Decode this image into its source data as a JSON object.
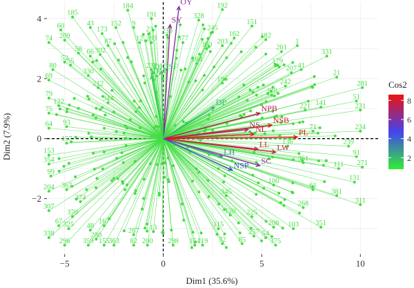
{
  "chart_data": {
    "type": "scatter",
    "subtype": "PCA biplot (individuals + variables)",
    "xlabel": "Dim1 (35.6%)",
    "ylabel": "Dim2 (7.9%)",
    "xlim": [
      -5.9,
      10.9
    ],
    "ylim": [
      -3.85,
      4.55
    ],
    "x_ticks": [
      -5,
      0,
      5,
      10
    ],
    "y_ticks": [
      -2,
      0,
      2,
      4
    ],
    "grid": true,
    "reference_lines": {
      "x": 0,
      "y": 0,
      "style": "dashed"
    },
    "legend": {
      "title": "Cos2",
      "ticks": [
        2,
        4,
        6,
        8
      ],
      "range": [
        0.8,
        8.6
      ],
      "gradient_colors": [
        "#33ee33",
        "#4444ee",
        "#ee1111"
      ],
      "placement": "right"
    },
    "individuals": {
      "color": "#44dd44",
      "labeled_points": [
        {
          "label": "185",
          "x": -4.6,
          "y": 4.05
        },
        {
          "label": "184",
          "x": -1.8,
          "y": 4.28
        },
        {
          "label": "191",
          "x": -0.6,
          "y": 4.0
        },
        {
          "label": "43",
          "x": -3.7,
          "y": 3.7
        },
        {
          "label": "152",
          "x": -2.4,
          "y": 3.7
        },
        {
          "label": "9",
          "x": -1.5,
          "y": 3.7
        },
        {
          "label": "60",
          "x": -5.2,
          "y": 3.62
        },
        {
          "label": "173",
          "x": -3.1,
          "y": 3.5
        },
        {
          "label": "23",
          "x": -0.7,
          "y": 3.5
        },
        {
          "label": "74",
          "x": -5.8,
          "y": 3.2
        },
        {
          "label": "209",
          "x": -5.0,
          "y": 3.28
        },
        {
          "label": "80",
          "x": -5.6,
          "y": 2.3
        },
        {
          "label": "52",
          "x": -5.0,
          "y": 2.55
        },
        {
          "label": "58",
          "x": -4.3,
          "y": 2.85
        },
        {
          "label": "66",
          "x": -3.7,
          "y": 2.75
        },
        {
          "label": "55",
          "x": -4.7,
          "y": 2.45
        },
        {
          "label": "69",
          "x": -5.8,
          "y": 1.95
        },
        {
          "label": "79",
          "x": -5.8,
          "y": 1.35
        },
        {
          "label": "122",
          "x": -5.3,
          "y": 1.1
        },
        {
          "label": "75",
          "x": -5.8,
          "y": 0.85
        },
        {
          "label": "64",
          "x": -5.8,
          "y": 0.35
        },
        {
          "label": "93",
          "x": -4.9,
          "y": 0.4
        },
        {
          "label": "153",
          "x": -5.8,
          "y": -0.55
        },
        {
          "label": "354",
          "x": -5.8,
          "y": -0.85
        },
        {
          "label": "99",
          "x": -5.7,
          "y": -1.25
        },
        {
          "label": "204",
          "x": -5.8,
          "y": -1.75
        },
        {
          "label": "307",
          "x": -5.8,
          "y": -2.4
        },
        {
          "label": "67",
          "x": -5.3,
          "y": -2.9
        },
        {
          "label": "325",
          "x": -4.8,
          "y": -3.0
        },
        {
          "label": "338",
          "x": -5.8,
          "y": -3.3
        },
        {
          "label": "296",
          "x": -5.0,
          "y": -3.55
        },
        {
          "label": "359",
          "x": -3.8,
          "y": -3.55
        },
        {
          "label": "155",
          "x": -3.0,
          "y": -3.55
        },
        {
          "label": "363",
          "x": -2.5,
          "y": -3.55
        },
        {
          "label": "82",
          "x": -1.5,
          "y": -3.55
        },
        {
          "label": "200",
          "x": -0.8,
          "y": -3.55
        },
        {
          "label": "298",
          "x": 0.5,
          "y": -3.55
        },
        {
          "label": "154",
          "x": 1.6,
          "y": -3.55
        },
        {
          "label": "32",
          "x": 3.0,
          "y": -3.5
        },
        {
          "label": "85",
          "x": 4.0,
          "y": -3.5
        },
        {
          "label": "54",
          "x": 5.2,
          "y": -3.3
        },
        {
          "label": "103",
          "x": 6.6,
          "y": -3.0
        },
        {
          "label": "351",
          "x": 8.0,
          "y": -2.95
        },
        {
          "label": "311",
          "x": 10.0,
          "y": -2.2
        },
        {
          "label": "381",
          "x": 8.8,
          "y": -1.9
        },
        {
          "label": "131",
          "x": 9.7,
          "y": -1.45
        },
        {
          "label": "271",
          "x": 10.1,
          "y": -0.95
        },
        {
          "label": "111",
          "x": 8.9,
          "y": -1.0
        },
        {
          "label": "91",
          "x": 9.8,
          "y": -0.6
        },
        {
          "label": "239",
          "x": 9.4,
          "y": -0.25
        },
        {
          "label": "234",
          "x": 10.0,
          "y": 0.25
        },
        {
          "label": "231",
          "x": 10.0,
          "y": 0.95
        },
        {
          "label": "281",
          "x": 10.1,
          "y": 1.7
        },
        {
          "label": "51",
          "x": 9.8,
          "y": 1.25
        },
        {
          "label": "21",
          "x": 8.8,
          "y": 2.05
        },
        {
          "label": "331",
          "x": 8.3,
          "y": 2.75
        },
        {
          "label": "141",
          "x": 8.0,
          "y": 1.05
        },
        {
          "label": "41",
          "x": 7.0,
          "y": 2.3
        },
        {
          "label": "1",
          "x": 6.8,
          "y": 3.1
        },
        {
          "label": "182",
          "x": 5.2,
          "y": 3.3
        },
        {
          "label": "151",
          "x": 4.5,
          "y": 3.75
        },
        {
          "label": "162",
          "x": 3.6,
          "y": 3.35
        },
        {
          "label": "192",
          "x": 3.0,
          "y": 4.3
        },
        {
          "label": "328",
          "x": 1.8,
          "y": 3.95
        },
        {
          "label": "201",
          "x": 6.0,
          "y": 2.9
        },
        {
          "label": "245",
          "x": 2.5,
          "y": 3.55
        },
        {
          "label": "239",
          "x": 0.2,
          "y": 3.45
        },
        {
          "label": "203",
          "x": 3.0,
          "y": 3.1
        },
        {
          "label": "360",
          "x": 2.2,
          "y": 3.0
        },
        {
          "label": "377",
          "x": 1.0,
          "y": 3.2
        },
        {
          "label": "179",
          "x": 5.8,
          "y": 2.45
        },
        {
          "label": "207",
          "x": 6.5,
          "y": 2.2
        },
        {
          "label": "242",
          "x": 6.2,
          "y": 1.75
        },
        {
          "label": "228",
          "x": 5.5,
          "y": 1.45
        },
        {
          "label": "221",
          "x": 7.2,
          "y": 0.95
        },
        {
          "label": "71",
          "x": 7.6,
          "y": 0.25
        },
        {
          "label": "212",
          "x": -3.3,
          "y": 1.7
        },
        {
          "label": "330",
          "x": -3.8,
          "y": 2.1
        },
        {
          "label": "283",
          "x": -0.6,
          "y": 3.2
        },
        {
          "label": "12",
          "x": -1.2,
          "y": 3.2
        },
        {
          "label": "87",
          "x": -2.8,
          "y": 3.1
        },
        {
          "label": "302",
          "x": -3.2,
          "y": 2.8
        },
        {
          "label": "157",
          "x": -4.9,
          "y": -0.15
        },
        {
          "label": "367",
          "x": -4.9,
          "y": -1.7
        },
        {
          "label": "374",
          "x": -4.2,
          "y": -2.1
        },
        {
          "label": "370",
          "x": -4.6,
          "y": -2.6
        },
        {
          "label": "48",
          "x": -3.7,
          "y": -3.05
        },
        {
          "label": "167",
          "x": -3.0,
          "y": -2.9
        },
        {
          "label": "280",
          "x": -3.4,
          "y": -3.35
        },
        {
          "label": "267",
          "x": -1.5,
          "y": -3.2
        },
        {
          "label": "13",
          "x": -0.5,
          "y": -3.1
        },
        {
          "label": "119",
          "x": 2.0,
          "y": -3.55
        },
        {
          "label": "115",
          "x": 2.8,
          "y": -3.0
        },
        {
          "label": "120",
          "x": 3.4,
          "y": -2.55
        },
        {
          "label": "208",
          "x": 5.6,
          "y": -2.95
        },
        {
          "label": "225",
          "x": 4.5,
          "y": -2.6
        },
        {
          "label": "268",
          "x": 7.1,
          "y": -2.3
        },
        {
          "label": "61",
          "x": 7.6,
          "y": -1.7
        },
        {
          "label": "100",
          "x": 5.6,
          "y": -1.55
        },
        {
          "label": "361",
          "x": 7.1,
          "y": -0.8
        },
        {
          "label": "136",
          "x": 6.3,
          "y": -0.25
        },
        {
          "label": "257",
          "x": 4.6,
          "y": -3.25
        },
        {
          "label": "375",
          "x": 5.7,
          "y": -3.55
        },
        {
          "label": "345",
          "x": 3.2,
          "y": -1.9
        },
        {
          "label": "233",
          "x": -0.6,
          "y": 2.3
        },
        {
          "label": "344",
          "x": -2.8,
          "y": 1.2
        },
        {
          "label": "196",
          "x": 3.0,
          "y": 1.85
        },
        {
          "label": "168",
          "x": 1.7,
          "y": 2.5
        },
        {
          "label": "295",
          "x": 2.1,
          "y": 0.25
        }
      ],
      "unlabeled_cloud": "many additional unlabeled green points, roughly elliptical cloud centred near (1.5, 0)"
    },
    "variables": [
      {
        "name": "OY",
        "x": 0.8,
        "y": 4.4,
        "cos2": 6.0
      },
      {
        "name": "SY",
        "x": 0.35,
        "y": 3.8,
        "cos2": 6.5
      },
      {
        "name": "DF",
        "x": -0.55,
        "y": 2.25,
        "cos2": 1.4
      },
      {
        "name": "DSF",
        "x": -0.1,
        "y": 2.25,
        "cos2": 1.6
      },
      {
        "name": "DM",
        "x": -0.6,
        "y": 2.1,
        "cos2": 1.5
      },
      {
        "name": "NPB",
        "x": 4.9,
        "y": 0.85,
        "cos2": 7.5
      },
      {
        "name": "NSB",
        "x": 5.5,
        "y": 0.45,
        "cos2": 8.3
      },
      {
        "name": "NS",
        "x": 4.3,
        "y": 0.3,
        "cos2": 7.0
      },
      {
        "name": "NL",
        "x": 4.6,
        "y": 0.15,
        "cos2": 8.0
      },
      {
        "name": "PL",
        "x": 6.8,
        "y": 0.05,
        "cos2": 8.6
      },
      {
        "name": "LW",
        "x": 5.7,
        "y": -0.45,
        "cos2": 7.6
      },
      {
        "name": "LL",
        "x": 4.8,
        "y": -0.35,
        "cos2": 7.9
      },
      {
        "name": "LH",
        "x": 3.0,
        "y": -0.6,
        "cos2": 3.3
      },
      {
        "name": "SC",
        "x": 4.9,
        "y": -0.9,
        "cos2": 6.2
      },
      {
        "name": "NSP",
        "x": 3.5,
        "y": -1.05,
        "cos2": 5.0
      },
      {
        "name": "DP",
        "x": 2.6,
        "y": 1.05,
        "cos2": 2.2
      }
    ]
  }
}
